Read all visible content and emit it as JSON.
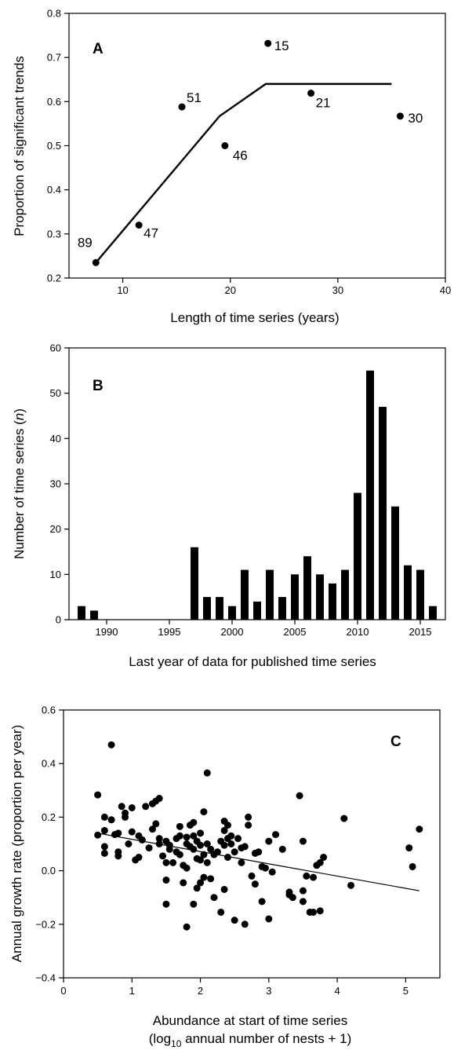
{
  "chart_data": [
    {
      "panel": "A",
      "type": "scatter",
      "xlabel": "Length of time series (years)",
      "ylabel": "Proportion of significant trends",
      "xlim": [
        5,
        40
      ],
      "ylim": [
        0.2,
        0.8
      ],
      "xticks": [
        "10",
        "20",
        "30",
        "40"
      ],
      "yticks": [
        "0.2",
        "0.3",
        "0.4",
        "0.5",
        "0.6",
        "0.7",
        "0.8"
      ],
      "points": [
        {
          "x": 7.5,
          "y": 0.235,
          "label": "89"
        },
        {
          "x": 11.5,
          "y": 0.32,
          "label": "47"
        },
        {
          "x": 15.5,
          "y": 0.588,
          "label": "51"
        },
        {
          "x": 19.5,
          "y": 0.5,
          "label": "46"
        },
        {
          "x": 23.5,
          "y": 0.732,
          "label": "15"
        },
        {
          "x": 27.5,
          "y": 0.619,
          "label": "21"
        },
        {
          "x": 35.8,
          "y": 0.567,
          "label": "30"
        }
      ],
      "fit_line": [
        [
          7.5,
          0.235
        ],
        [
          19,
          0.567
        ],
        [
          23.3,
          0.64
        ],
        [
          35,
          0.64
        ]
      ]
    },
    {
      "panel": "B",
      "type": "bar",
      "xlabel": "Last year of data for published time series",
      "ylabel": "Number of time series (n)",
      "ylabel_parts": [
        "Number of time series (",
        "n",
        ")"
      ],
      "xlim": [
        1987,
        2017
      ],
      "ylim": [
        0,
        60
      ],
      "xticks": [
        "1990",
        "1995",
        "2000",
        "2005",
        "2010",
        "2015"
      ],
      "yticks": [
        "0",
        "10",
        "20",
        "30",
        "40",
        "50",
        "60"
      ],
      "categories": [
        1988,
        1989,
        1997,
        1998,
        1999,
        2000,
        2001,
        2002,
        2003,
        2004,
        2005,
        2006,
        2007,
        2008,
        2009,
        2010,
        2011,
        2012,
        2013,
        2014,
        2015,
        2016
      ],
      "values": [
        3,
        2,
        16,
        5,
        5,
        3,
        11,
        4,
        11,
        5,
        10,
        14,
        10,
        8,
        11,
        28,
        55,
        47,
        25,
        12,
        11,
        3
      ]
    },
    {
      "panel": "C",
      "type": "scatter",
      "xlabel": "Abundance at start of time series",
      "xlabel2_parts": [
        "(log",
        "10",
        " annual number of nests + 1)"
      ],
      "ylabel": "Annual growth rate (proportion per year)",
      "xlim": [
        0,
        5.5
      ],
      "ylim": [
        -0.4,
        0.6
      ],
      "xticks": [
        "0",
        "1",
        "2",
        "3",
        "4",
        "5"
      ],
      "yticks": [
        "−0.4",
        "−0.2",
        "0.0",
        "0.2",
        "0.4",
        "0.6"
      ],
      "fit_line": [
        [
          0.5,
          0.14
        ],
        [
          5.2,
          -0.075
        ]
      ],
      "points": [
        [
          0.5,
          0.283
        ],
        [
          0.5,
          0.133
        ],
        [
          0.6,
          0.2
        ],
        [
          0.6,
          0.15
        ],
        [
          0.6,
          0.09
        ],
        [
          0.6,
          0.065
        ],
        [
          0.7,
          0.47
        ],
        [
          0.7,
          0.19
        ],
        [
          0.75,
          0.135
        ],
        [
          0.8,
          0.14
        ],
        [
          0.8,
          0.07
        ],
        [
          0.8,
          0.055
        ],
        [
          0.85,
          0.24
        ],
        [
          0.9,
          0.2
        ],
        [
          0.9,
          0.215
        ],
        [
          0.95,
          0.1
        ],
        [
          1.0,
          0.235
        ],
        [
          1.0,
          0.145
        ],
        [
          1.05,
          0.04
        ],
        [
          1.1,
          0.13
        ],
        [
          1.1,
          0.05
        ],
        [
          1.15,
          0.115
        ],
        [
          1.2,
          0.24
        ],
        [
          1.25,
          0.085
        ],
        [
          1.3,
          0.25
        ],
        [
          1.3,
          0.155
        ],
        [
          1.35,
          0.26
        ],
        [
          1.35,
          0.175
        ],
        [
          1.4,
          0.27
        ],
        [
          1.4,
          0.12
        ],
        [
          1.4,
          0.1
        ],
        [
          1.45,
          0.055
        ],
        [
          1.5,
          0.11
        ],
        [
          1.5,
          0.03
        ],
        [
          1.5,
          -0.035
        ],
        [
          1.5,
          -0.125
        ],
        [
          1.55,
          0.08
        ],
        [
          1.55,
          0.095
        ],
        [
          1.6,
          0.03
        ],
        [
          1.65,
          0.12
        ],
        [
          1.65,
          0.07
        ],
        [
          1.7,
          0.165
        ],
        [
          1.7,
          0.13
        ],
        [
          1.7,
          0.06
        ],
        [
          1.75,
          0.02
        ],
        [
          1.75,
          -0.045
        ],
        [
          1.8,
          0.125
        ],
        [
          1.8,
          0.1
        ],
        [
          1.8,
          0.01
        ],
        [
          1.8,
          -0.21
        ],
        [
          1.85,
          0.17
        ],
        [
          1.85,
          0.09
        ],
        [
          1.9,
          0.18
        ],
        [
          1.9,
          0.13
        ],
        [
          1.9,
          0.08
        ],
        [
          1.9,
          -0.125
        ],
        [
          1.95,
          0.11
        ],
        [
          1.95,
          0.045
        ],
        [
          1.95,
          -0.065
        ],
        [
          2.0,
          0.14
        ],
        [
          2.0,
          0.095
        ],
        [
          2.0,
          0.04
        ],
        [
          2.0,
          -0.045
        ],
        [
          2.05,
          0.22
        ],
        [
          2.05,
          0.06
        ],
        [
          2.05,
          -0.025
        ],
        [
          2.1,
          0.365
        ],
        [
          2.1,
          0.1
        ],
        [
          2.1,
          0.03
        ],
        [
          2.15,
          0.08
        ],
        [
          2.15,
          -0.03
        ],
        [
          2.2,
          0.06
        ],
        [
          2.2,
          -0.1
        ],
        [
          2.25,
          0.07
        ],
        [
          2.3,
          0.11
        ],
        [
          2.3,
          -0.155
        ],
        [
          2.35,
          0.185
        ],
        [
          2.35,
          0.15
        ],
        [
          2.35,
          0.095
        ],
        [
          2.35,
          -0.07
        ],
        [
          2.4,
          0.17
        ],
        [
          2.4,
          0.12
        ],
        [
          2.4,
          0.05
        ],
        [
          2.45,
          0.1
        ],
        [
          2.45,
          0.13
        ],
        [
          2.5,
          0.07
        ],
        [
          2.5,
          -0.185
        ],
        [
          2.55,
          0.12
        ],
        [
          2.6,
          0.085
        ],
        [
          2.6,
          0.03
        ],
        [
          2.65,
          -0.2
        ],
        [
          2.65,
          0.09
        ],
        [
          2.7,
          0.17
        ],
        [
          2.7,
          0.2
        ],
        [
          2.75,
          -0.02
        ],
        [
          2.8,
          0.065
        ],
        [
          2.8,
          -0.05
        ],
        [
          2.85,
          0.07
        ],
        [
          2.9,
          0.015
        ],
        [
          2.9,
          -0.115
        ],
        [
          2.95,
          0.01
        ],
        [
          3.0,
          0.11
        ],
        [
          3.0,
          -0.18
        ],
        [
          3.05,
          -0.005
        ],
        [
          3.1,
          0.135
        ],
        [
          3.2,
          0.08
        ],
        [
          3.3,
          -0.08
        ],
        [
          3.3,
          -0.09
        ],
        [
          3.35,
          -0.1
        ],
        [
          3.45,
          0.28
        ],
        [
          3.5,
          0.11
        ],
        [
          3.5,
          -0.075
        ],
        [
          3.5,
          -0.115
        ],
        [
          3.55,
          -0.02
        ],
        [
          3.6,
          -0.155
        ],
        [
          3.65,
          -0.155
        ],
        [
          3.65,
          -0.025
        ],
        [
          3.7,
          0.02
        ],
        [
          3.75,
          0.03
        ],
        [
          3.75,
          -0.15
        ],
        [
          3.8,
          0.05
        ],
        [
          4.1,
          0.195
        ],
        [
          4.2,
          -0.055
        ],
        [
          5.05,
          0.085
        ],
        [
          5.1,
          0.015
        ],
        [
          5.2,
          0.155
        ]
      ]
    }
  ]
}
